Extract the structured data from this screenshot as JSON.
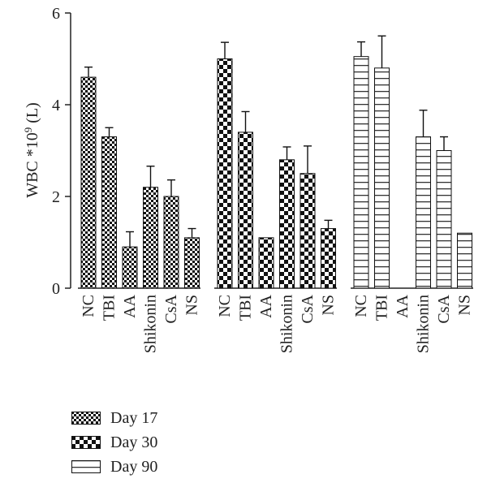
{
  "chart_data": {
    "type": "bar",
    "ylabel_text": "WBC *10",
    "ylabel_sup": "9",
    "ylabel_unit": " (L)",
    "ylim": [
      0,
      6
    ],
    "yticks": [
      0,
      2,
      4,
      6
    ],
    "groups": [
      {
        "name": "Day 17",
        "pattern": "checker-small",
        "categories": [
          "NC",
          "TBI",
          "AA",
          "Shikonin",
          "CsA",
          "NS"
        ],
        "values": [
          4.6,
          3.3,
          0.9,
          2.2,
          2.0,
          1.1
        ],
        "errors": [
          0.22,
          0.2,
          0.33,
          0.46,
          0.36,
          0.2
        ]
      },
      {
        "name": "Day 30",
        "pattern": "checker-large",
        "categories": [
          "NC",
          "TBI",
          "AA",
          "Shikonin",
          "CsA",
          "NS"
        ],
        "values": [
          5.0,
          3.4,
          1.1,
          2.8,
          2.5,
          1.3
        ],
        "errors": [
          0.36,
          0.45,
          0.0,
          0.28,
          0.6,
          0.18
        ]
      },
      {
        "name": "Day 90",
        "pattern": "horizontal-lines",
        "categories": [
          "NC",
          "TBI",
          "AA",
          "Shikonin",
          "CsA",
          "NS"
        ],
        "values": [
          5.05,
          4.8,
          null,
          3.3,
          3.0,
          1.2
        ],
        "errors": [
          0.32,
          0.7,
          null,
          0.58,
          0.3,
          0.0
        ]
      }
    ],
    "legend": [
      "Day 17",
      "Day 30",
      "Day 90"
    ],
    "legend_position": "bottom-left",
    "grid": false
  }
}
